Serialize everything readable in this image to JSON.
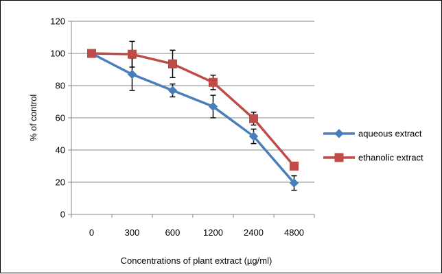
{
  "chart_data": {
    "type": "line",
    "categories": [
      "0",
      "300",
      "600",
      "1200",
      "2400",
      "4800"
    ],
    "xlabel": "Concentrations of plant extract (µg/ml)",
    "ylabel": "% of control",
    "ylim": [
      0,
      120
    ],
    "yticks": [
      "0",
      "20",
      "40",
      "60",
      "80",
      "100",
      "120"
    ],
    "grid": "horizontal",
    "legend_position": "right",
    "series": [
      {
        "name": "aqueous extract",
        "color": "#4a7ebb",
        "marker": "diamond",
        "values": [
          100,
          87,
          77,
          67,
          48.5,
          19.5
        ],
        "error": [
          0,
          10,
          4,
          7,
          4.5,
          4.5
        ]
      },
      {
        "name": "ethanolic extract",
        "color": "#be4b48",
        "marker": "square",
        "values": [
          100,
          99.5,
          93.5,
          82,
          59.5,
          30
        ],
        "error": [
          0,
          8,
          8.5,
          4.5,
          4,
          0
        ]
      }
    ]
  }
}
